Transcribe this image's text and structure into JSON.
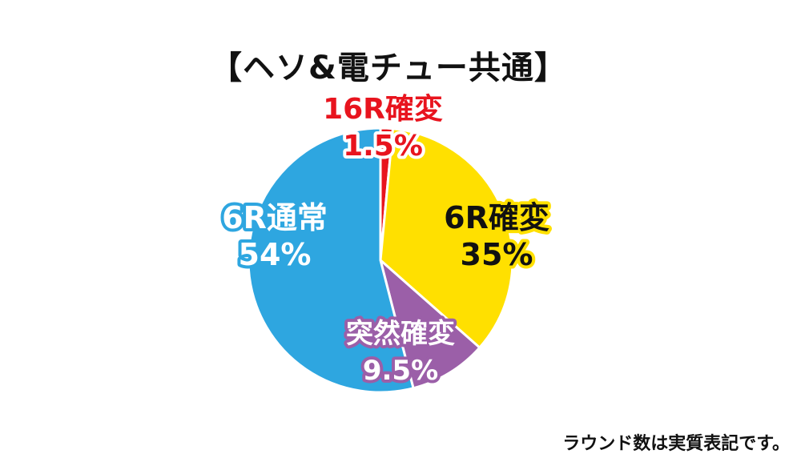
{
  "title": "【ヘソ&電チュー共通】",
  "note": "ラウンド数は実質表記です。",
  "colors": {
    "yellow": "#FFE000",
    "purple": "#9B5FA8",
    "blue": "#2EA6E0",
    "red": "#E8141E",
    "text_dark": "#111111",
    "white": "#FFFFFF"
  },
  "chart_data": {
    "type": "pie",
    "title": "【ヘソ&電チュー共通】",
    "slices": [
      {
        "label": "16R確変",
        "value": 1.5,
        "display": "1.5%",
        "color": "#E8141E"
      },
      {
        "label": "6R確変",
        "value": 35,
        "display": "35%",
        "color": "#FFE000"
      },
      {
        "label": "突然確変",
        "value": 9.5,
        "display": "9.5%",
        "color": "#9B5FA8"
      },
      {
        "label": "6R通常",
        "value": 54,
        "display": "54%",
        "color": "#2EA6E0"
      }
    ]
  }
}
